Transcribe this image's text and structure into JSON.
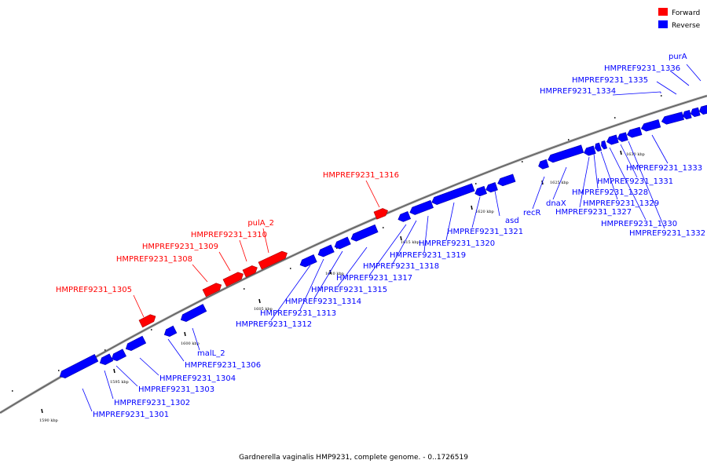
{
  "legend": [
    {
      "label": "Forward",
      "color": "#ff0000"
    },
    {
      "label": "Reverse",
      "color": "#0000ff"
    }
  ],
  "caption": "Gardnerella vaginalis HMP9231, complete genome. - 0..1726519",
  "ticks": [
    "1590 kbp",
    "1595 kbp",
    "1600 kbp",
    "1605 kbp",
    "1610 kbp",
    "1615 kbp",
    "1620 kbp",
    "1625 kbp",
    "1630 kbp"
  ],
  "genes": [
    {
      "name": "HMPREF9231_1301",
      "strand": "reverse"
    },
    {
      "name": "HMPREF9231_1302",
      "strand": "reverse"
    },
    {
      "name": "HMPREF9231_1303",
      "strand": "reverse"
    },
    {
      "name": "HMPREF9231_1304",
      "strand": "reverse"
    },
    {
      "name": "HMPREF9231_1305",
      "strand": "forward"
    },
    {
      "name": "HMPREF9231_1306",
      "strand": "reverse"
    },
    {
      "name": "malL_2",
      "strand": "reverse"
    },
    {
      "name": "HMPREF9231_1308",
      "strand": "forward"
    },
    {
      "name": "HMPREF9231_1309",
      "strand": "forward"
    },
    {
      "name": "HMPREF9231_1310",
      "strand": "forward"
    },
    {
      "name": "pulA_2",
      "strand": "forward"
    },
    {
      "name": "HMPREF9231_1312",
      "strand": "reverse"
    },
    {
      "name": "HMPREF9231_1313",
      "strand": "reverse"
    },
    {
      "name": "HMPREF9231_1314",
      "strand": "reverse"
    },
    {
      "name": "HMPREF9231_1315",
      "strand": "reverse"
    },
    {
      "name": "HMPREF9231_1316",
      "strand": "forward"
    },
    {
      "name": "HMPREF9231_1317",
      "strand": "reverse"
    },
    {
      "name": "HMPREF9231_1318",
      "strand": "reverse"
    },
    {
      "name": "HMPREF9231_1319",
      "strand": "reverse"
    },
    {
      "name": "HMPREF9231_1320",
      "strand": "reverse"
    },
    {
      "name": "HMPREF9231_1321",
      "strand": "reverse"
    },
    {
      "name": "asd",
      "strand": "reverse"
    },
    {
      "name": "recR",
      "strand": "reverse"
    },
    {
      "name": "dnaX",
      "strand": "reverse"
    },
    {
      "name": "HMPREF9231_1327",
      "strand": "reverse"
    },
    {
      "name": "HMPREF9231_1328",
      "strand": "reverse"
    },
    {
      "name": "HMPREF9231_1329",
      "strand": "reverse"
    },
    {
      "name": "HMPREF9231_1330",
      "strand": "reverse"
    },
    {
      "name": "HMPREF9231_1331",
      "strand": "reverse"
    },
    {
      "name": "HMPREF9231_1332",
      "strand": "reverse"
    },
    {
      "name": "HMPREF9231_1333",
      "strand": "reverse"
    },
    {
      "name": "HMPREF9231_1334",
      "strand": "reverse"
    },
    {
      "name": "HMPREF9231_1335",
      "strand": "reverse"
    },
    {
      "name": "HMPREF9231_1336",
      "strand": "reverse"
    },
    {
      "name": "purA",
      "strand": "reverse"
    }
  ]
}
